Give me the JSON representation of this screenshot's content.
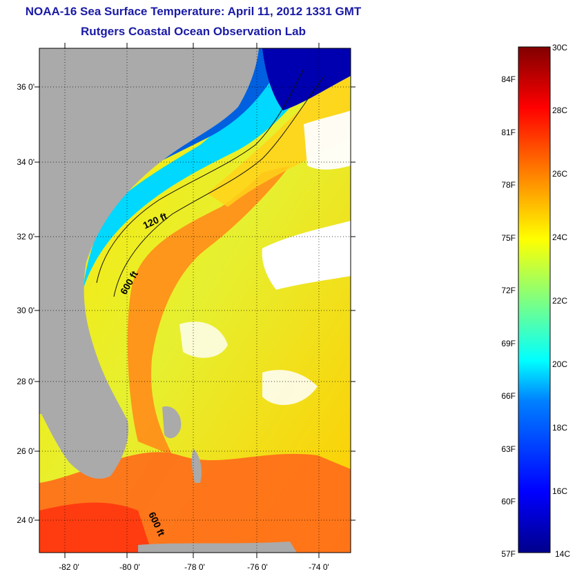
{
  "title": "NOAA-16 Sea Surface Temperature:  April 11, 2012 1331 GMT",
  "subtitle": "Rutgers Coastal Ocean Observation Lab",
  "map": {
    "lat_ticks": [
      {
        "value": 36,
        "label": "36 0'"
      },
      {
        "value": 34,
        "label": "34 0'"
      },
      {
        "value": 32,
        "label": "32 0'"
      },
      {
        "value": 30,
        "label": "30 0'"
      },
      {
        "value": 28,
        "label": "28 0'"
      },
      {
        "value": 26,
        "label": "26 0'"
      },
      {
        "value": 24,
        "label": "24 0'"
      }
    ],
    "lon_ticks": [
      {
        "value": -82,
        "label": "-82 0'"
      },
      {
        "value": -80,
        "label": "-80 0'"
      },
      {
        "value": -78,
        "label": "-78 0'"
      },
      {
        "value": -76,
        "label": "-76 0'"
      },
      {
        "value": -74,
        "label": "-74 0'"
      }
    ],
    "lat_range": [
      23,
      37
    ],
    "lon_range": [
      -83,
      -73
    ],
    "contour_labels": [
      "120 ft",
      "600 ft",
      "600 ft"
    ],
    "land_color": "#aaaaaa",
    "cloud_color": "#ffffff"
  },
  "colorbar": {
    "celsius_ticks": [
      "30C",
      "28C",
      "26C",
      "24C",
      "22C",
      "20C",
      "18C",
      "16C",
      "14C"
    ],
    "fahrenheit_ticks": [
      "84F",
      "81F",
      "78F",
      "75F",
      "72F",
      "69F",
      "66F",
      "63F",
      "60F",
      "57F"
    ],
    "range_c": [
      14,
      30
    ],
    "colors": [
      "#00008b",
      "#0000ff",
      "#0080ff",
      "#00ffff",
      "#80ff80",
      "#ffff00",
      "#ff8000",
      "#ff0000",
      "#800000"
    ]
  }
}
